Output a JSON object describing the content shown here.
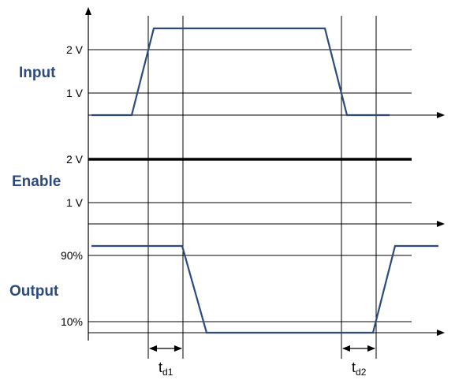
{
  "signals": {
    "input": "Input",
    "enable": "Enable",
    "output": "Output"
  },
  "ticks": {
    "input_2v": "2 V",
    "input_1v": "1 V",
    "enable_2v": "2 V",
    "enable_1v": "1 V",
    "output_90": "90%",
    "output_10": "10%"
  },
  "delays": {
    "td1_main": "t",
    "td1_sub": "d1",
    "td2_main": "t",
    "td2_sub": "d2"
  },
  "colors": {
    "signal": "#2c4a7c",
    "grid": "#000000",
    "enable_level": "#000000"
  }
}
